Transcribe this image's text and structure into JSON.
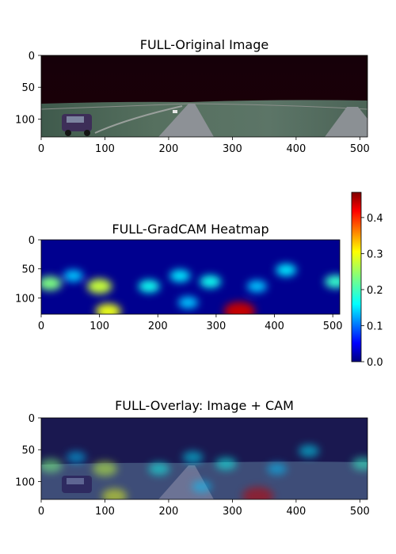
{
  "chart_data": [
    {
      "type": "heatmap",
      "title": "FULL-Original Image",
      "xlabel": "",
      "ylabel": "",
      "xlim": [
        0,
        512
      ],
      "ylim": [
        128,
        0
      ],
      "x_ticks": [
        "0",
        "100",
        "200",
        "300",
        "400",
        "500"
      ],
      "y_ticks": [
        "0",
        "50",
        "100"
      ],
      "x_tick_values": [
        0,
        100,
        200,
        300,
        400,
        500
      ],
      "y_tick_values": [
        0,
        50,
        100
      ],
      "content": "panoramic road scene"
    },
    {
      "type": "heatmap",
      "title": "FULL-GradCAM Heatmap",
      "xlabel": "",
      "ylabel": "",
      "xlim": [
        0,
        512
      ],
      "ylim": [
        128,
        0
      ],
      "x_ticks": [
        "0",
        "100",
        "200",
        "300",
        "400",
        "500"
      ],
      "y_ticks": [
        "0",
        "50",
        "100"
      ],
      "x_tick_values": [
        0,
        100,
        200,
        300,
        400,
        500
      ],
      "y_tick_values": [
        0,
        50,
        100
      ],
      "colormap": "jet",
      "colorbar": {
        "range": [
          0,
          0.47
        ],
        "ticks": [
          "0.0",
          "0.1",
          "0.2",
          "0.3",
          "0.4"
        ],
        "tick_values": [
          0,
          0.1,
          0.2,
          0.3,
          0.4
        ]
      },
      "hotspots": [
        {
          "x": 15,
          "y": 75,
          "value": 0.22
        },
        {
          "x": 55,
          "y": 62,
          "value": 0.12
        },
        {
          "x": 100,
          "y": 80,
          "value": 0.26
        },
        {
          "x": 115,
          "y": 123,
          "value": 0.28
        },
        {
          "x": 185,
          "y": 80,
          "value": 0.16
        },
        {
          "x": 238,
          "y": 62,
          "value": 0.14
        },
        {
          "x": 252,
          "y": 108,
          "value": 0.12
        },
        {
          "x": 290,
          "y": 72,
          "value": 0.16
        },
        {
          "x": 340,
          "y": 123,
          "value": 0.46
        },
        {
          "x": 370,
          "y": 80,
          "value": 0.12
        },
        {
          "x": 420,
          "y": 52,
          "value": 0.14
        },
        {
          "x": 505,
          "y": 72,
          "value": 0.18
        }
      ]
    },
    {
      "type": "heatmap",
      "title": "FULL-Overlay: Image + CAM",
      "xlabel": "",
      "ylabel": "",
      "xlim": [
        0,
        512
      ],
      "ylim": [
        128,
        0
      ],
      "x_ticks": [
        "0",
        "100",
        "200",
        "300",
        "400",
        "500"
      ],
      "y_ticks": [
        "0",
        "50",
        "100"
      ],
      "x_tick_values": [
        0,
        100,
        200,
        300,
        400,
        500
      ],
      "y_tick_values": [
        0,
        50,
        100
      ]
    }
  ]
}
